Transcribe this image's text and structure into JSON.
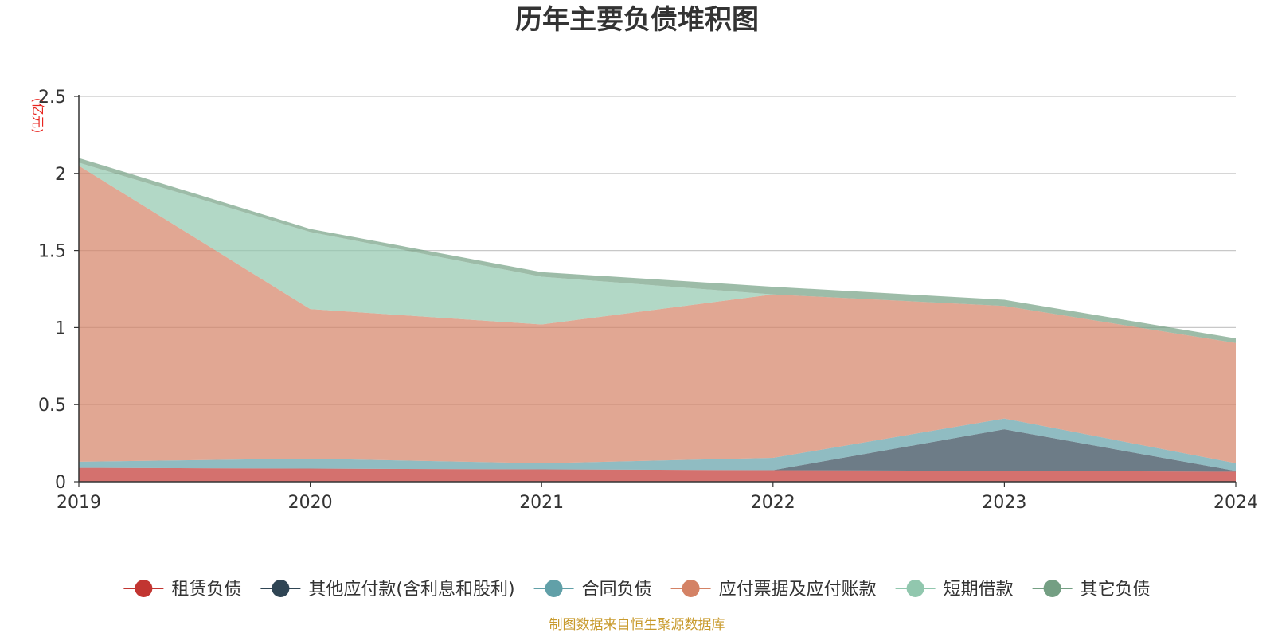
{
  "chart_data": {
    "type": "area",
    "stacked": true,
    "title": "历年主要负债堆积图",
    "unit_label": "(亿元)",
    "x": [
      "2019",
      "2020",
      "2021",
      "2022",
      "2023",
      "2024"
    ],
    "ylim": [
      0,
      2.5
    ],
    "y_ticks": [
      "0",
      "0.5",
      "1",
      "1.5",
      "2",
      "2.5"
    ],
    "grid": true,
    "legend_position": "bottom",
    "series": [
      {
        "name": "租赁负债",
        "color": "#c23531",
        "values": [
          0.09,
          0.085,
          0.08,
          0.075,
          0.07,
          0.065
        ]
      },
      {
        "name": "其他应付款(含利息和股利)",
        "color": "#2f4554",
        "values": [
          0.0,
          0.0,
          0.0,
          0.0,
          0.27,
          0.005
        ]
      },
      {
        "name": "合同负债",
        "color": "#61a0a8",
        "values": [
          0.04,
          0.065,
          0.04,
          0.08,
          0.07,
          0.05
        ]
      },
      {
        "name": "应付票据及应付账款",
        "color": "#d48265",
        "values": [
          1.92,
          0.97,
          0.9,
          1.06,
          0.73,
          0.78
        ]
      },
      {
        "name": "短期借款",
        "color": "#91c7ae",
        "values": [
          0.02,
          0.5,
          0.31,
          0.0,
          0.0,
          0.0
        ]
      },
      {
        "name": "其它负债",
        "color": "#749f83",
        "values": [
          0.03,
          0.02,
          0.03,
          0.05,
          0.04,
          0.03
        ]
      }
    ],
    "source_note": "制图数据来自恒生聚源数据库"
  }
}
